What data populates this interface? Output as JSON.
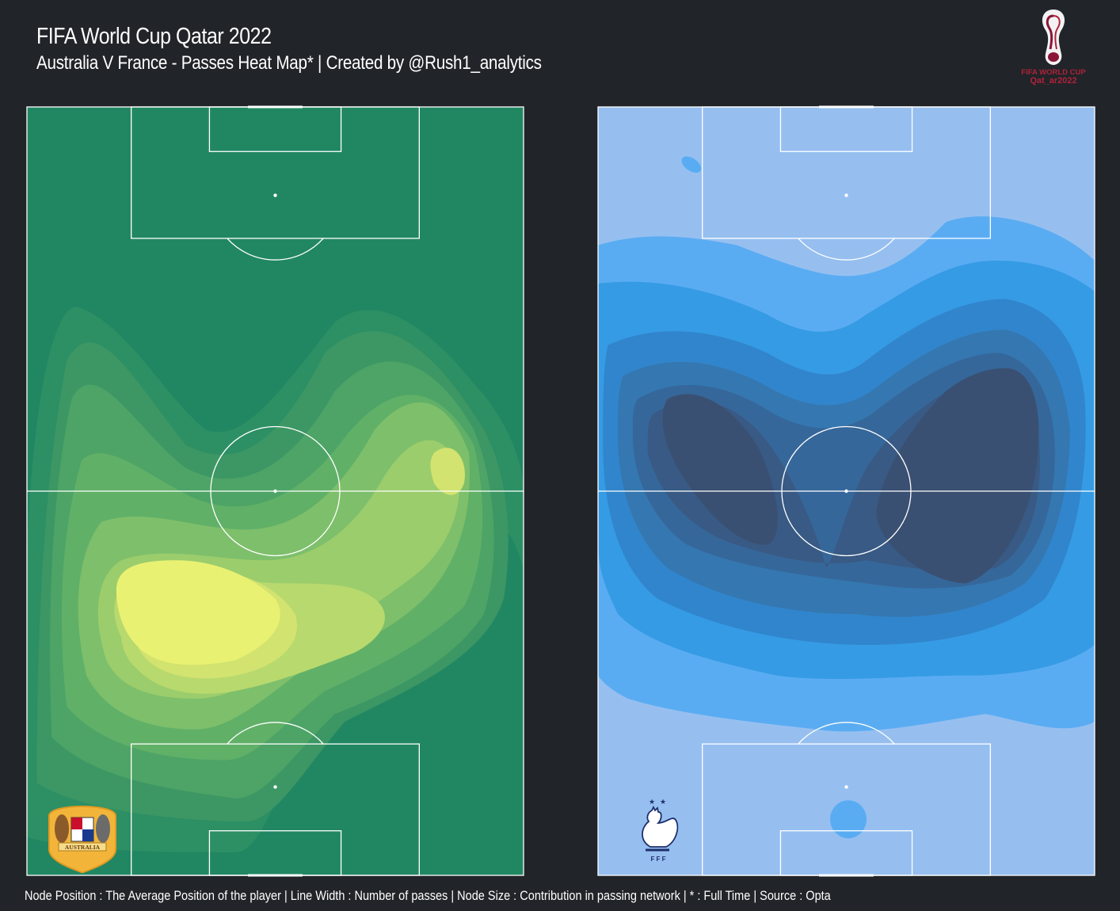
{
  "header": {
    "title": "FIFA World Cup Qatar 2022",
    "subtitle": "Australia V France - Passes Heat Map* | Created by @Rush1_analytics"
  },
  "footer": {
    "note": "Node Position : The Average Position of the player | Line Width : Number of passes | Node Size : Contribution in passing network | * : Full Time | Source : Opta"
  },
  "logo": {
    "icon": "fifa-world-cup-trophy-icon",
    "line1": "FIFA WORLD CUP",
    "line2": "Qat_ar2022",
    "color": "#8a1538"
  },
  "chart_data": [
    {
      "type": "heatmap",
      "team": "Australia",
      "crest_icon": "australia-football-crest-icon",
      "crest_text": "AUSTRALIA",
      "colors": {
        "pitch": "#218763",
        "levels": [
          "#2d8f64",
          "#3c9764",
          "#4da466",
          "#61b068",
          "#7ebf6b",
          "#9bcd6c",
          "#b8d96e",
          "#d2e36f",
          "#e9f172"
        ]
      },
      "density_peaks": [
        {
          "x": 0.4,
          "y": 0.33,
          "weight": 1.0
        },
        {
          "x": 0.84,
          "y": 0.64,
          "weight": 0.55
        },
        {
          "x": 0.12,
          "y": 0.6,
          "weight": 0.35
        }
      ]
    },
    {
      "type": "heatmap",
      "team": "France",
      "crest_icon": "france-football-crest-icon",
      "crest_text": "F F F",
      "colors": {
        "pitch": "#96bff0",
        "levels": [
          "#5aacf2",
          "#359be4",
          "#3185cc",
          "#3577b0",
          "#36679a",
          "#385a84",
          "#3a5072"
        ]
      },
      "density_peaks": [
        {
          "x": 0.3,
          "y": 0.5,
          "weight": 1.0
        },
        {
          "x": 0.75,
          "y": 0.47,
          "weight": 1.0
        }
      ]
    }
  ]
}
